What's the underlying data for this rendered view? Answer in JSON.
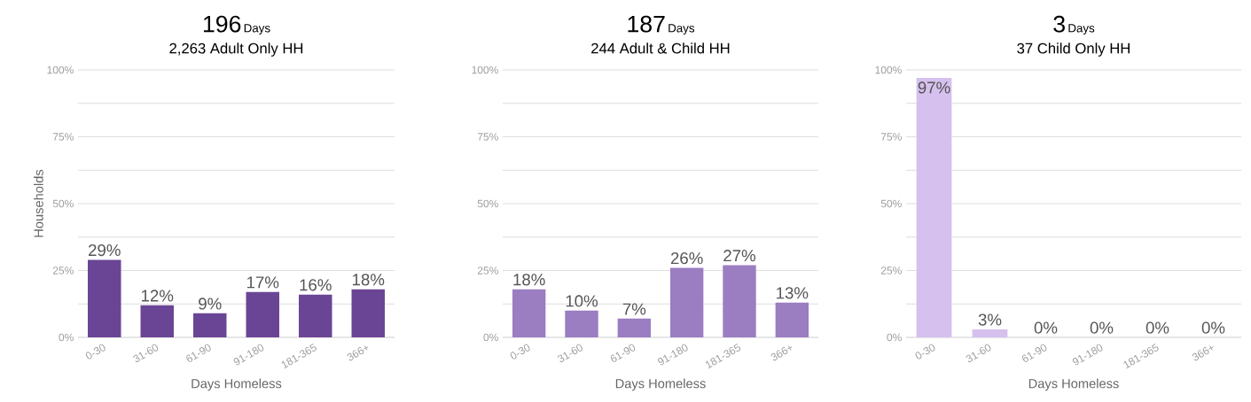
{
  "chart_data": [
    {
      "type": "bar",
      "title": "196",
      "annotations": [
        "Days"
      ],
      "subtitle": "2,263 Adult Only HH",
      "xlabel": "Days Homeless",
      "ylabel": "Households",
      "categories": [
        "0-30",
        "31-60",
        "61-90",
        "91-180",
        "181-365",
        "366+"
      ],
      "values": [
        29,
        12,
        9,
        17,
        16,
        18
      ],
      "value_labels": [
        "29%",
        "12%",
        "9%",
        "17%",
        "16%",
        "18%"
      ],
      "color": "#6a4595",
      "ylim": [
        0,
        100
      ],
      "yticks": [
        {
          "value": 0,
          "label": "0%"
        },
        {
          "value": 12.5,
          "label": null
        },
        {
          "value": 25,
          "label": "25%"
        },
        {
          "value": 37.5,
          "label": null
        },
        {
          "value": 50,
          "label": "50%"
        },
        {
          "value": 62.5,
          "label": null
        },
        {
          "value": 75,
          "label": "75%"
        },
        {
          "value": 87.5,
          "label": null
        },
        {
          "value": 100,
          "label": "100%"
        }
      ],
      "grid": "y"
    },
    {
      "type": "bar",
      "title": "187",
      "annotations": [
        "Days"
      ],
      "subtitle": "244 Adult & Child HH",
      "xlabel": "Days Homeless",
      "categories": [
        "0-30",
        "31-60",
        "61-90",
        "91-180",
        "181-365",
        "366+"
      ],
      "values": [
        18,
        10,
        7,
        26,
        27,
        13
      ],
      "value_labels": [
        "18%",
        "10%",
        "7%",
        "26%",
        "27%",
        "13%"
      ],
      "color": "#9b7dc2",
      "ylim": [
        0,
        100
      ],
      "yticks": [
        {
          "value": 0,
          "label": "0%"
        },
        {
          "value": 12.5,
          "label": null
        },
        {
          "value": 25,
          "label": "25%"
        },
        {
          "value": 37.5,
          "label": null
        },
        {
          "value": 50,
          "label": "50%"
        },
        {
          "value": 62.5,
          "label": null
        },
        {
          "value": 75,
          "label": "75%"
        },
        {
          "value": 87.5,
          "label": null
        },
        {
          "value": 100,
          "label": "100%"
        }
      ],
      "grid": "y"
    },
    {
      "type": "bar",
      "title": "3",
      "annotations": [
        "Days"
      ],
      "subtitle": "37 Child Only HH",
      "xlabel": "Days Homeless",
      "categories": [
        "0-30",
        "31-60",
        "61-90",
        "91-180",
        "181-365",
        "366+"
      ],
      "values": [
        97,
        3,
        0,
        0,
        0,
        0
      ],
      "value_labels": [
        "97%",
        "3%",
        "0%",
        "0%",
        "0%",
        "0%"
      ],
      "color": "#d5c0ee",
      "ylim": [
        0,
        100
      ],
      "yticks": [
        {
          "value": 0,
          "label": "0%"
        },
        {
          "value": 12.5,
          "label": null
        },
        {
          "value": 25,
          "label": "25%"
        },
        {
          "value": 37.5,
          "label": null
        },
        {
          "value": 50,
          "label": "50%"
        },
        {
          "value": 62.5,
          "label": null
        },
        {
          "value": 75,
          "label": "75%"
        },
        {
          "value": 87.5,
          "label": null
        },
        {
          "value": 100,
          "label": "100%"
        }
      ],
      "grid": "y"
    }
  ]
}
